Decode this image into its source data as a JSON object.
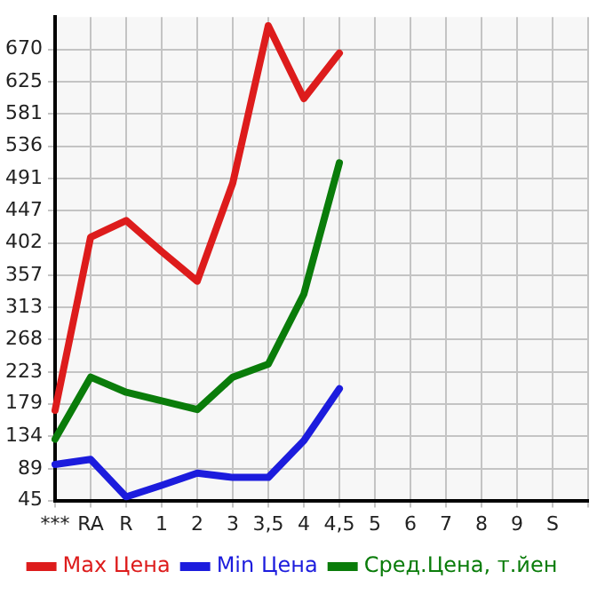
{
  "chart_data": {
    "type": "line",
    "categories": [
      "***",
      "RA",
      "R",
      "1",
      "2",
      "3",
      "3,5",
      "4",
      "4,5",
      "5",
      "6",
      "7",
      "8",
      "9",
      "S",
      null
    ],
    "series": [
      {
        "name": "Max Цена",
        "color": "#dd1c1c",
        "values": [
          170,
          410,
          433,
          390,
          349,
          485,
          703,
          602,
          665,
          null,
          null,
          null,
          null,
          null,
          null,
          null
        ]
      },
      {
        "name": "Min Цена",
        "color": "#1c1cdd",
        "values": [
          95,
          102,
          50,
          66,
          83,
          77,
          77,
          128,
          200,
          null,
          null,
          null,
          null,
          null,
          null,
          null
        ]
      },
      {
        "name": "Сред.Цена, т.йен",
        "color": "#0a7c0a",
        "values": [
          130,
          216,
          195,
          183,
          171,
          216,
          234,
          331,
          513,
          null,
          null,
          null,
          null,
          null,
          null,
          null
        ]
      }
    ],
    "ylim": [
      45,
      715
    ],
    "yticks": [
      45,
      89,
      134,
      179,
      223,
      268,
      313,
      357,
      402,
      447,
      491,
      536,
      581,
      625,
      670
    ],
    "grid": true,
    "legend": "bottom",
    "marker": "none",
    "line_style": "solid"
  }
}
